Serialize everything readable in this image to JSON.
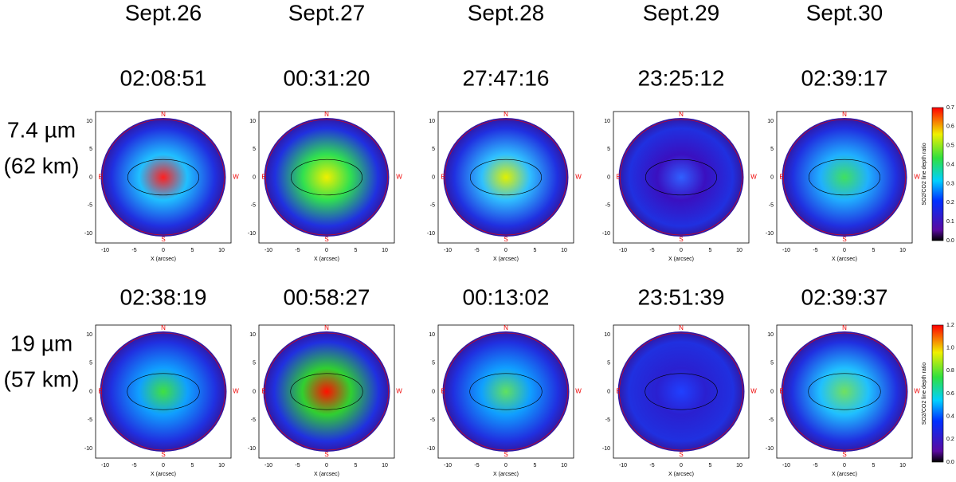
{
  "columns": [
    {
      "date": "Sept.26",
      "times": [
        "02:08:51",
        "02:38:19"
      ]
    },
    {
      "date": "Sept.27",
      "times": [
        "00:31:20",
        "00:58:27"
      ]
    },
    {
      "date": "Sept.28",
      "times": [
        "27:47:16",
        "00:13:02"
      ]
    },
    {
      "date": "Sept.29",
      "times": [
        "23:25:12",
        "23:51:39"
      ]
    },
    {
      "date": "Sept.30",
      "times": [
        "02:39:17",
        "02:39:37"
      ]
    }
  ],
  "rows": [
    {
      "label_lines": [
        "7.4 µm",
        "(62 km)"
      ],
      "colorbar": {
        "title": "SO2/CO2 line depth ratio",
        "ticks": [
          "0.0",
          "0.1",
          "0.2",
          "0.3",
          "0.4",
          "0.5",
          "0.6",
          "0.7"
        ]
      }
    },
    {
      "label_lines": [
        "19 µm",
        "(57 km)"
      ],
      "colorbar": {
        "title": "SO2/CO2 line depth ratio",
        "ticks": [
          "0.0",
          "0.2",
          "0.4",
          "0.6",
          "0.8",
          "1.0",
          "1.2"
        ]
      }
    }
  ],
  "axis": {
    "x_label": "X (arcsec)",
    "x_ticks": [
      "-10",
      "-5",
      "0",
      "5",
      "10"
    ],
    "y_ticks": [
      "10",
      "5",
      "0",
      "-5",
      "-10"
    ]
  },
  "compass": {
    "n": "N",
    "s": "S",
    "e": "E",
    "w": "W"
  }
}
